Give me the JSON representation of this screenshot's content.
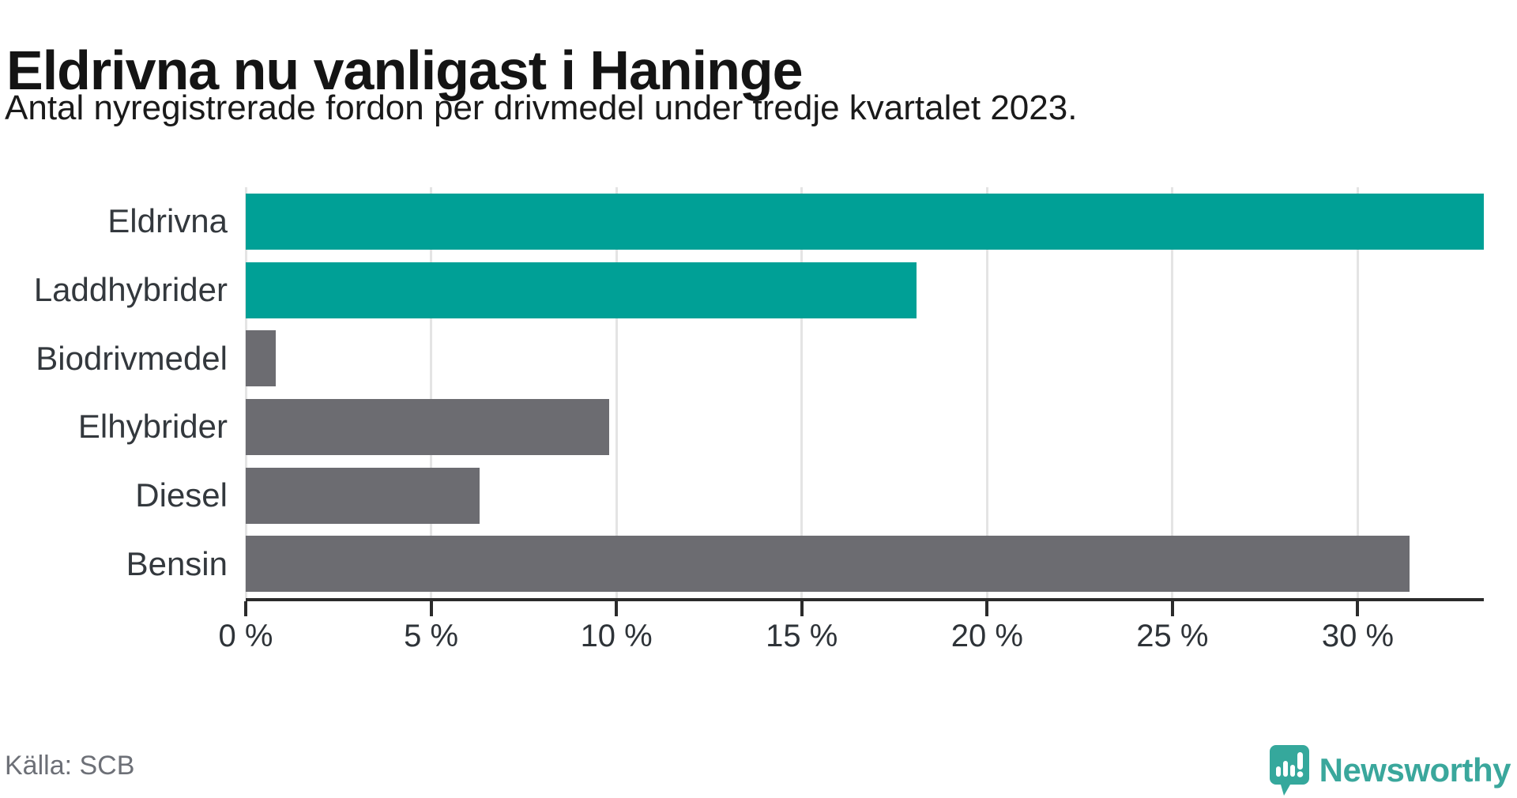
{
  "chart_data": {
    "type": "bar",
    "orientation": "horizontal",
    "title": "Eldrivna nu vanligast i Haninge",
    "subtitle": "Antal nyregistrerade fordon per drivmedel under tredje kvartalet 2023.",
    "categories": [
      "Eldrivna",
      "Laddhybrider",
      "Biodrivmedel",
      "Elhybrider",
      "Diesel",
      "Bensin"
    ],
    "values": [
      33.4,
      18.1,
      0.8,
      9.8,
      6.3,
      31.4
    ],
    "unit": "%",
    "bar_colors": [
      "#00a096",
      "#00a096",
      "#6c6c71",
      "#6c6c71",
      "#6c6c71",
      "#6c6c71"
    ],
    "x_ticks": [
      0,
      5,
      10,
      15,
      20,
      25,
      30
    ],
    "x_tick_labels": [
      "0 %",
      "5 %",
      "10 %",
      "15 %",
      "20 %",
      "25 %",
      "30 %"
    ],
    "xlim": [
      0,
      33.4
    ],
    "grid": "vertical-gridlines-only",
    "legend": "none"
  },
  "footer": {
    "source": "Källa: SCB",
    "brand": "Newsworthy"
  },
  "colors": {
    "highlight_bar": "#00a096",
    "default_bar": "#6c6c71",
    "gridline": "#e4e4e4",
    "axis": "#2b2b2b",
    "brand_teal": "#3aa79c",
    "text_dark": "#1a1a1a",
    "text_muted": "#6d7077"
  }
}
